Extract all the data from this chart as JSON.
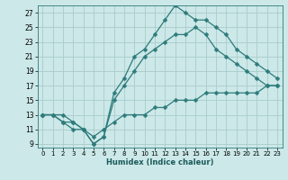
{
  "title": "",
  "xlabel": "Humidex (Indice chaleur)",
  "bg_color": "#cce8e8",
  "grid_color": "#aacccc",
  "line_color": "#2e7b7b",
  "xlim": [
    -0.5,
    23.5
  ],
  "ylim": [
    8.5,
    28
  ],
  "xticks": [
    0,
    1,
    2,
    3,
    4,
    5,
    6,
    7,
    8,
    9,
    10,
    11,
    12,
    13,
    14,
    15,
    16,
    17,
    18,
    19,
    20,
    21,
    22,
    23
  ],
  "yticks": [
    9,
    11,
    13,
    15,
    17,
    19,
    21,
    23,
    25,
    27
  ],
  "line1_x": [
    0,
    1,
    2,
    3,
    4,
    5,
    6,
    7,
    8,
    9,
    10,
    11,
    12,
    13,
    14,
    15,
    16,
    17,
    18,
    19,
    20,
    21,
    22,
    23
  ],
  "line1_y": [
    13,
    13,
    12,
    12,
    11,
    9,
    10,
    16,
    18,
    21,
    22,
    24,
    26,
    28,
    27,
    26,
    26,
    25,
    24,
    22,
    21,
    20,
    19,
    18
  ],
  "line2_x": [
    0,
    1,
    2,
    3,
    4,
    5,
    6,
    7,
    8,
    9,
    10,
    11,
    12,
    13,
    14,
    15,
    16,
    17,
    18,
    19,
    20,
    21,
    22,
    23
  ],
  "line2_y": [
    13,
    13,
    12,
    11,
    11,
    9,
    10,
    15,
    17,
    19,
    21,
    22,
    23,
    24,
    24,
    25,
    24,
    22,
    21,
    20,
    19,
    18,
    17,
    17
  ],
  "line3_x": [
    0,
    2,
    3,
    4,
    5,
    6,
    7,
    8,
    9,
    10,
    11,
    12,
    13,
    14,
    15,
    16,
    17,
    18,
    19,
    20,
    21,
    22,
    23
  ],
  "line3_y": [
    13,
    13,
    12,
    11,
    10,
    11,
    12,
    13,
    13,
    13,
    14,
    14,
    15,
    15,
    15,
    16,
    16,
    16,
    16,
    16,
    16,
    17,
    17
  ]
}
